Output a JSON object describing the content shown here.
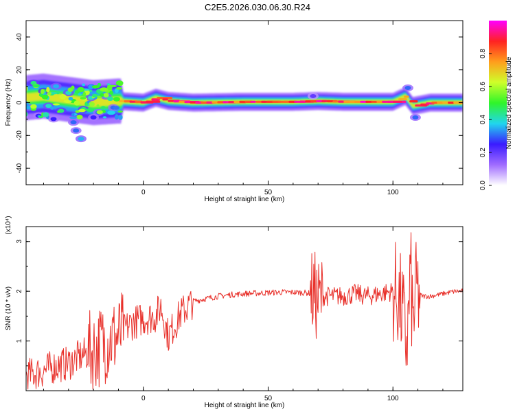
{
  "title": "C2E5.2026.030.06.30.R24",
  "colors": {
    "snr_line": "#e8302a",
    "frame": "#000000"
  },
  "chart_data": [
    {
      "type": "heatmap",
      "xlabel": "Height of straight line (km)",
      "ylabel": "Frequency (Hz)",
      "xlim": [
        -47,
        128
      ],
      "ylim": [
        -50,
        50
      ],
      "x_ticks": [
        0,
        50,
        100
      ],
      "y_ticks": [
        -40,
        -20,
        0,
        20,
        40
      ],
      "colorbar": {
        "label": "Normalized spectral amplitude",
        "range": [
          0,
          1
        ],
        "ticks": [
          0.0,
          0.2,
          0.4,
          0.6,
          0.8
        ],
        "stops": [
          "#ffffff",
          "#a06cff",
          "#3a1bff",
          "#21d6ee",
          "#2ff52a",
          "#cfff2a",
          "#ff9d1c",
          "#ff2222",
          "#ff00ff"
        ]
      },
      "ridge": [
        {
          "x": -47,
          "f": 3
        },
        {
          "x": -40,
          "f": 4
        },
        {
          "x": -30,
          "f": 2
        },
        {
          "x": -20,
          "f": 0
        },
        {
          "x": -10,
          "f": 1
        },
        {
          "x": 0,
          "f": 0
        },
        {
          "x": 5,
          "f": 3
        },
        {
          "x": 10,
          "f": 1
        },
        {
          "x": 20,
          "f": 0
        },
        {
          "x": 40,
          "f": 0.5
        },
        {
          "x": 60,
          "f": 0.5
        },
        {
          "x": 70,
          "f": 1
        },
        {
          "x": 80,
          "f": 0.5
        },
        {
          "x": 100,
          "f": 0.5
        },
        {
          "x": 105,
          "f": 4
        },
        {
          "x": 108,
          "f": -2
        },
        {
          "x": 115,
          "f": 0
        },
        {
          "x": 128,
          "f": 0
        }
      ],
      "scatter_blobs": [
        {
          "x": -44,
          "f": 12,
          "a": 0.45
        },
        {
          "x": -40,
          "f": 7,
          "a": 0.5
        },
        {
          "x": -38,
          "f": -2,
          "a": 0.4
        },
        {
          "x": -35,
          "f": 10,
          "a": 0.35
        },
        {
          "x": -33,
          "f": -5,
          "a": 0.45
        },
        {
          "x": -30,
          "f": 6,
          "a": 0.4
        },
        {
          "x": -28,
          "f": -12,
          "a": 0.3
        },
        {
          "x": -27,
          "f": -17,
          "a": 0.3
        },
        {
          "x": -25,
          "f": -22,
          "a": 0.35
        },
        {
          "x": -24,
          "f": -4,
          "a": 0.45
        },
        {
          "x": -21,
          "f": 3,
          "a": 0.4
        },
        {
          "x": -18,
          "f": -6,
          "a": 0.3
        },
        {
          "x": -15,
          "f": 4,
          "a": 0.35
        },
        {
          "x": -12,
          "f": -3,
          "a": 0.3
        },
        {
          "x": -46,
          "f": -3,
          "a": 0.35
        },
        {
          "x": -42,
          "f": -8,
          "a": 0.25
        },
        {
          "x": -36,
          "f": -10,
          "a": 0.25
        },
        {
          "x": -20,
          "f": -9,
          "a": 0.25
        },
        {
          "x": 106,
          "f": 9,
          "a": 0.3
        },
        {
          "x": 109,
          "f": -9,
          "a": 0.3
        },
        {
          "x": 68,
          "f": 4,
          "a": 0.2
        }
      ]
    },
    {
      "type": "line",
      "xlabel": "Height of straight line (km)",
      "ylabel": "SNR (10 * v/v)",
      "y_multiplier": "(x10⁴)",
      "xlim": [
        -47,
        128
      ],
      "ylim": [
        0,
        3.3
      ],
      "x_ticks": [
        0,
        50,
        100
      ],
      "y_ticks": [
        1,
        2,
        3
      ],
      "series": [
        {
          "x": [
            -47,
            -40,
            -35,
            -30,
            -25,
            -20,
            -15,
            -10,
            -5,
            0,
            5,
            7,
            10,
            15,
            18,
            20,
            25,
            30,
            35,
            40,
            45,
            50,
            55,
            60,
            65,
            68,
            69,
            70,
            72,
            75,
            80,
            85,
            90,
            95,
            100,
            102,
            104,
            105,
            106,
            107,
            108,
            109,
            110,
            112,
            115,
            120,
            125,
            128
          ],
          "values": [
            0.3,
            0.4,
            0.5,
            0.55,
            0.7,
            0.8,
            1.0,
            1.1,
            1.35,
            1.45,
            1.5,
            1.7,
            1.1,
            1.55,
            1.7,
            1.8,
            1.85,
            1.9,
            1.93,
            1.95,
            1.96,
            1.97,
            1.98,
            1.98,
            1.97,
            1.95,
            1.9,
            1.8,
            1.9,
            1.9,
            1.9,
            1.95,
            1.9,
            1.95,
            2.0,
            1.9,
            1.5,
            1.0,
            1.2,
            2.4,
            1.3,
            1.9,
            1.95,
            1.9,
            1.9,
            1.95,
            2.0,
            2.0
          ],
          "noise_band": [
            {
              "from": -47,
              "to": -22,
              "amp": 0.35
            },
            {
              "from": -22,
              "to": -8,
              "amp": 0.85
            },
            {
              "from": -8,
              "to": 20,
              "amp": 0.35
            },
            {
              "from": 20,
              "to": 67,
              "amp": 0.06
            },
            {
              "from": 67,
              "to": 72,
              "amp": 0.9
            },
            {
              "from": 72,
              "to": 100,
              "amp": 0.2
            },
            {
              "from": 100,
              "to": 111,
              "amp": 1.1
            },
            {
              "from": 111,
              "to": 128,
              "amp": 0.05
            }
          ]
        }
      ]
    }
  ]
}
